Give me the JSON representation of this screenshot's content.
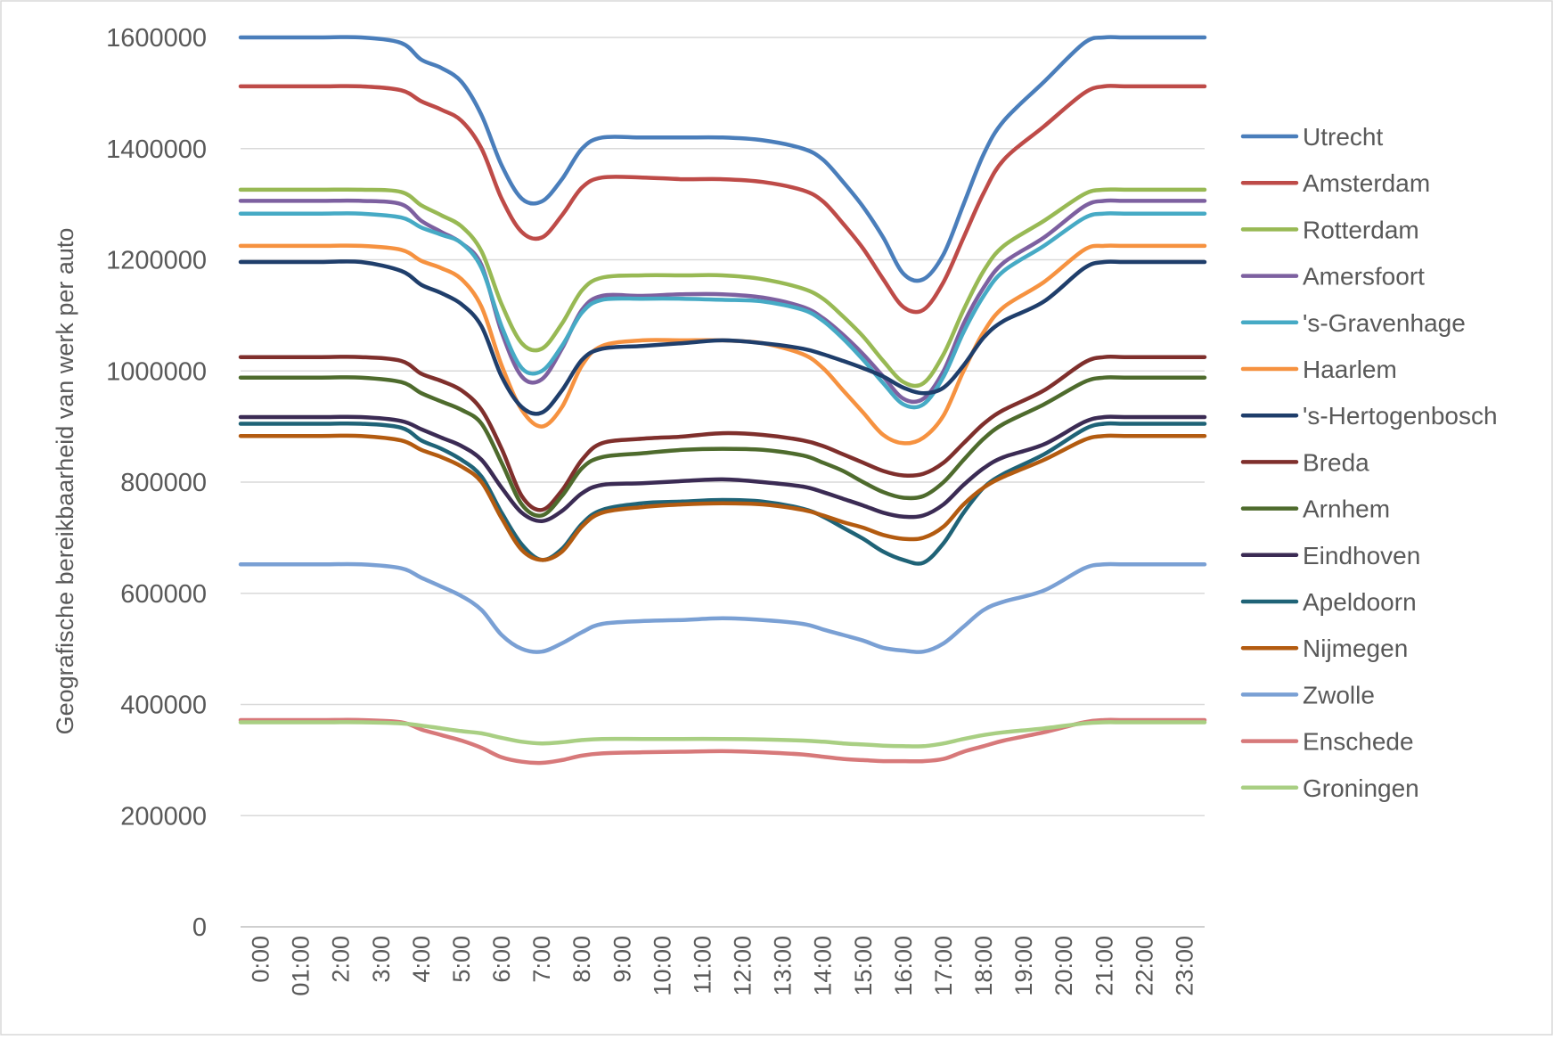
{
  "chart_data": {
    "type": "line",
    "title": "",
    "xlabel": "",
    "ylabel": "Geografische bereikbaarheid van werk per auto",
    "ylim": [
      0,
      1600000
    ],
    "yticks": [
      "0",
      "200000",
      "400000",
      "600000",
      "800000",
      "1000000",
      "1200000",
      "1400000",
      "1600000"
    ],
    "x_tick_labels": [
      "0:00",
      "01:00",
      "2:00",
      "3:00",
      "4:00",
      "5:00",
      "6:00",
      "7:00",
      "8:00",
      "9:00",
      "10:00",
      "11:00",
      "12:00",
      "13:00",
      "14:00",
      "15:00",
      "16:00",
      "17:00",
      "18:00",
      "19:00",
      "20:00",
      "21:00",
      "22:00",
      "23:00"
    ],
    "x_hours": [
      0,
      1,
      2,
      3,
      4,
      4.5,
      5,
      5.5,
      6,
      6.5,
      7,
      7.5,
      8,
      8.5,
      9,
      10,
      11,
      12,
      13,
      14,
      14.5,
      15,
      15.5,
      16,
      16.5,
      17,
      17.5,
      18,
      18.5,
      19,
      20,
      21,
      21.5,
      22,
      23,
      24
    ],
    "grid": true,
    "legend_position": "right",
    "series": [
      {
        "name": "Utrecht",
        "color": "#4a7ebb",
        "values": [
          1600000,
          1600000,
          1600000,
          1600000,
          1590000,
          1560000,
          1545000,
          1520000,
          1460000,
          1370000,
          1310000,
          1305000,
          1345000,
          1400000,
          1420000,
          1420000,
          1420000,
          1420000,
          1415000,
          1400000,
          1380000,
          1340000,
          1295000,
          1240000,
          1175000,
          1165000,
          1210000,
          1300000,
          1390000,
          1450000,
          1520000,
          1590000,
          1600000,
          1600000,
          1600000,
          1600000
        ]
      },
      {
        "name": "Amsterdam",
        "color": "#be4b48",
        "values": [
          1512000,
          1512000,
          1512000,
          1512000,
          1505000,
          1485000,
          1470000,
          1450000,
          1400000,
          1310000,
          1250000,
          1240000,
          1280000,
          1330000,
          1348000,
          1348000,
          1345000,
          1345000,
          1340000,
          1325000,
          1305000,
          1265000,
          1220000,
          1165000,
          1115000,
          1110000,
          1160000,
          1240000,
          1320000,
          1380000,
          1440000,
          1500000,
          1512000,
          1512000,
          1512000,
          1512000
        ]
      },
      {
        "name": "Rotterdam",
        "color": "#98b954",
        "values": [
          1326000,
          1326000,
          1326000,
          1326000,
          1322000,
          1298000,
          1280000,
          1260000,
          1215000,
          1120000,
          1050000,
          1040000,
          1085000,
          1145000,
          1168000,
          1172000,
          1172000,
          1172000,
          1165000,
          1148000,
          1130000,
          1098000,
          1062000,
          1018000,
          980000,
          978000,
          1030000,
          1110000,
          1180000,
          1225000,
          1270000,
          1318000,
          1326000,
          1326000,
          1326000,
          1326000
        ]
      },
      {
        "name": "Amersfoort",
        "color": "#7d60a0",
        "values": [
          1306000,
          1306000,
          1306000,
          1306000,
          1300000,
          1270000,
          1250000,
          1230000,
          1190000,
          1070000,
          990000,
          985000,
          1040000,
          1110000,
          1135000,
          1135000,
          1138000,
          1138000,
          1132000,
          1115000,
          1095000,
          1065000,
          1030000,
          990000,
          950000,
          950000,
          1000000,
          1085000,
          1150000,
          1195000,
          1240000,
          1296000,
          1306000,
          1306000,
          1306000,
          1306000
        ]
      },
      {
        "name": "'s-Gravenhage",
        "color": "#46aac5",
        "values": [
          1283000,
          1283000,
          1283000,
          1283000,
          1276000,
          1258000,
          1245000,
          1230000,
          1185000,
          1080000,
          1005000,
          1000000,
          1045000,
          1105000,
          1128000,
          1130000,
          1130000,
          1128000,
          1125000,
          1110000,
          1090000,
          1058000,
          1020000,
          978000,
          940000,
          940000,
          990000,
          1070000,
          1135000,
          1180000,
          1225000,
          1275000,
          1283000,
          1283000,
          1283000,
          1283000
        ]
      },
      {
        "name": "Haarlem",
        "color": "#f69240",
        "values": [
          1225000,
          1225000,
          1225000,
          1225000,
          1218000,
          1198000,
          1185000,
          1165000,
          1115000,
          1010000,
          930000,
          900000,
          935000,
          1010000,
          1045000,
          1055000,
          1055000,
          1055000,
          1050000,
          1030000,
          1005000,
          965000,
          925000,
          885000,
          870000,
          880000,
          920000,
          1000000,
          1070000,
          1115000,
          1160000,
          1218000,
          1225000,
          1225000,
          1225000,
          1225000
        ]
      },
      {
        "name": "'s-Hertogenbosch",
        "color": "#1f3e6b",
        "values": [
          1196000,
          1196000,
          1196000,
          1196000,
          1180000,
          1155000,
          1140000,
          1120000,
          1080000,
          990000,
          935000,
          925000,
          965000,
          1020000,
          1040000,
          1045000,
          1050000,
          1055000,
          1050000,
          1040000,
          1030000,
          1018000,
          1005000,
          990000,
          970000,
          960000,
          970000,
          1010000,
          1060000,
          1090000,
          1125000,
          1185000,
          1196000,
          1196000,
          1196000,
          1196000
        ]
      },
      {
        "name": "Breda",
        "color": "#7f2f2c",
        "values": [
          1025000,
          1025000,
          1025000,
          1025000,
          1018000,
          995000,
          982000,
          965000,
          930000,
          860000,
          775000,
          750000,
          785000,
          840000,
          870000,
          878000,
          882000,
          888000,
          885000,
          875000,
          865000,
          850000,
          835000,
          820000,
          812000,
          815000,
          835000,
          870000,
          905000,
          930000,
          965000,
          1015000,
          1025000,
          1025000,
          1025000,
          1025000
        ]
      },
      {
        "name": "Arnhem",
        "color": "#4e6b2d",
        "values": [
          988000,
          988000,
          988000,
          988000,
          980000,
          960000,
          945000,
          930000,
          905000,
          835000,
          760000,
          740000,
          775000,
          825000,
          845000,
          852000,
          858000,
          860000,
          858000,
          848000,
          835000,
          820000,
          800000,
          782000,
          772000,
          775000,
          800000,
          840000,
          878000,
          905000,
          940000,
          980000,
          988000,
          988000,
          988000,
          988000
        ]
      },
      {
        "name": "Eindhoven",
        "color": "#3b2b54",
        "values": [
          917000,
          917000,
          917000,
          917000,
          910000,
          895000,
          880000,
          865000,
          840000,
          790000,
          745000,
          730000,
          748000,
          780000,
          795000,
          798000,
          802000,
          805000,
          800000,
          792000,
          782000,
          770000,
          758000,
          745000,
          738000,
          740000,
          760000,
          795000,
          825000,
          845000,
          868000,
          908000,
          917000,
          917000,
          917000,
          917000
        ]
      },
      {
        "name": "Apeldoorn",
        "color": "#1f6377",
        "values": [
          905000,
          905000,
          905000,
          905000,
          898000,
          875000,
          860000,
          840000,
          810000,
          745000,
          688000,
          660000,
          680000,
          725000,
          750000,
          762000,
          765000,
          768000,
          765000,
          752000,
          738000,
          718000,
          698000,
          675000,
          660000,
          655000,
          690000,
          745000,
          790000,
          815000,
          850000,
          895000,
          905000,
          905000,
          905000,
          905000
        ]
      },
      {
        "name": "Nijmegen",
        "color": "#b35b10",
        "values": [
          883000,
          883000,
          883000,
          883000,
          875000,
          858000,
          845000,
          828000,
          800000,
          735000,
          678000,
          660000,
          675000,
          720000,
          745000,
          755000,
          760000,
          762000,
          760000,
          750000,
          740000,
          728000,
          718000,
          705000,
          698000,
          700000,
          720000,
          760000,
          790000,
          810000,
          840000,
          876000,
          883000,
          883000,
          883000,
          883000
        ]
      },
      {
        "name": "Zwolle",
        "color": "#7aa0d4",
        "values": [
          652000,
          652000,
          652000,
          652000,
          645000,
          628000,
          612000,
          595000,
          570000,
          525000,
          500000,
          495000,
          510000,
          530000,
          545000,
          550000,
          552000,
          555000,
          552000,
          545000,
          535000,
          525000,
          515000,
          502000,
          497000,
          495000,
          510000,
          540000,
          570000,
          585000,
          605000,
          645000,
          652000,
          652000,
          652000,
          652000
        ]
      },
      {
        "name": "Enschede",
        "color": "#d7797a",
        "values": [
          372000,
          372000,
          372000,
          372000,
          368000,
          355000,
          345000,
          335000,
          322000,
          305000,
          297000,
          295000,
          300000,
          308000,
          312000,
          314000,
          315000,
          316000,
          314000,
          310000,
          306000,
          302000,
          300000,
          298000,
          298000,
          298000,
          302000,
          315000,
          325000,
          335000,
          350000,
          368000,
          372000,
          372000,
          372000,
          372000
        ]
      },
      {
        "name": "Groningen",
        "color": "#a9cf83",
        "values": [
          368000,
          368000,
          368000,
          368000,
          366000,
          362000,
          357000,
          352000,
          348000,
          340000,
          333000,
          330000,
          332000,
          336000,
          338000,
          338000,
          338000,
          338000,
          337000,
          335000,
          333000,
          330000,
          328000,
          326000,
          325000,
          325000,
          330000,
          338000,
          345000,
          350000,
          357000,
          366000,
          368000,
          368000,
          368000,
          368000
        ]
      }
    ]
  }
}
